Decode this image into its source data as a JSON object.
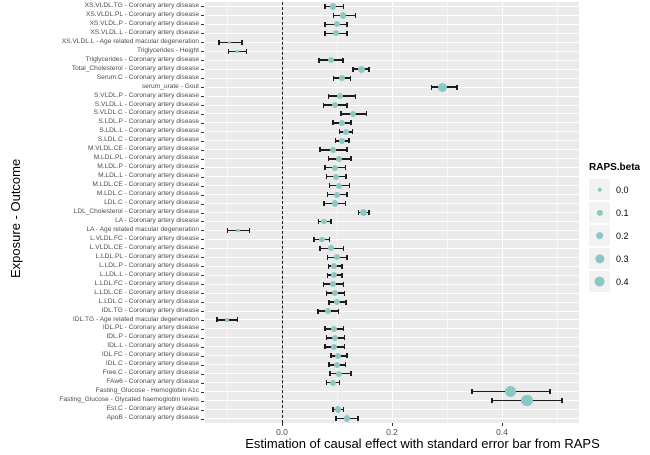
{
  "chart_data": {
    "type": "scatter",
    "subtype": "forest-dot-plot-with-error-bars",
    "title": "",
    "xlabel": "Estimation of causal effect with standard error bar from RAPS",
    "ylabel": "Exposure - Outcome",
    "xlim": [
      -0.14,
      0.54
    ],
    "x_ticks": [
      0.0,
      0.2,
      0.4
    ],
    "x_tick_labels": [
      "0.0",
      "0.2",
      "0.4"
    ],
    "x_minor_gridlines": [
      -0.1,
      0.1,
      0.3,
      0.5
    ],
    "zero_reference_line": {
      "x": 0.0,
      "style": "dashed",
      "color": "#1a1a1a"
    },
    "grid": true,
    "panel_background": "#EBEBEB",
    "point_color": "#8BC8C3",
    "errorbar_color": "#1c1c1c",
    "size_legend": {
      "title": "RAPS.beta",
      "position": "right",
      "entries": [
        {
          "label": "0.0",
          "value": 0.0
        },
        {
          "label": "0.1",
          "value": 0.1
        },
        {
          "label": "0.2",
          "value": 0.2
        },
        {
          "label": "0.3",
          "value": 0.3
        },
        {
          "label": "0.4",
          "value": 0.4
        }
      ]
    },
    "rows": [
      {
        "label": "XS.VLDL.TG - Coronary artery disease",
        "estimate": 0.093,
        "lower": 0.078,
        "upper": 0.111
      },
      {
        "label": "XS.VLDL.PL - Coronary artery disease",
        "estimate": 0.111,
        "lower": 0.093,
        "upper": 0.133
      },
      {
        "label": "XS.VLDL.P - Coronary artery disease",
        "estimate": 0.1,
        "lower": 0.078,
        "upper": 0.118
      },
      {
        "label": "XS.VLDL.L - Coronary artery disease",
        "estimate": 0.098,
        "lower": 0.078,
        "upper": 0.118
      },
      {
        "label": "XS.VLDL.L - Age related macular degeneration",
        "estimate": -0.095,
        "lower": -0.115,
        "upper": -0.073
      },
      {
        "label": "Triglycerides - Height",
        "estimate": -0.082,
        "lower": -0.098,
        "upper": -0.065
      },
      {
        "label": "Triglycerides - Coronary artery disease",
        "estimate": 0.09,
        "lower": 0.067,
        "upper": 0.11
      },
      {
        "label": "Total_Cholesterol - Coronary artery disease",
        "estimate": 0.144,
        "lower": 0.129,
        "upper": 0.158
      },
      {
        "label": "Serum.C - Coronary artery disease",
        "estimate": 0.109,
        "lower": 0.093,
        "upper": 0.124
      },
      {
        "label": "serum_urate - Gout",
        "estimate": 0.292,
        "lower": 0.271,
        "upper": 0.318
      },
      {
        "label": "S.VLDL.P - Coronary artery disease",
        "estimate": 0.105,
        "lower": 0.084,
        "upper": 0.133
      },
      {
        "label": "S.VLDL.L - Coronary artery disease",
        "estimate": 0.096,
        "lower": 0.075,
        "upper": 0.118
      },
      {
        "label": "S.VLDL.C - Coronary artery disease",
        "estimate": 0.129,
        "lower": 0.107,
        "upper": 0.153
      },
      {
        "label": "S.LDL.P - Coronary artery disease",
        "estimate": 0.109,
        "lower": 0.092,
        "upper": 0.125
      },
      {
        "label": "S.LDL.L - Coronary artery disease",
        "estimate": 0.116,
        "lower": 0.104,
        "upper": 0.128
      },
      {
        "label": "S.LDL.C - Coronary artery disease",
        "estimate": 0.109,
        "lower": 0.097,
        "upper": 0.121
      },
      {
        "label": "M.VLDL.CE - Coronary artery disease",
        "estimate": 0.093,
        "lower": 0.069,
        "upper": 0.118
      },
      {
        "label": "M.LDL.PL - Coronary artery disease",
        "estimate": 0.104,
        "lower": 0.084,
        "upper": 0.125
      },
      {
        "label": "M.LDL.P - Coronary artery disease",
        "estimate": 0.096,
        "lower": 0.078,
        "upper": 0.115
      },
      {
        "label": "M.LDL.L - Coronary artery disease",
        "estimate": 0.098,
        "lower": 0.08,
        "upper": 0.116
      },
      {
        "label": "M.LDL.CE - Coronary artery disease",
        "estimate": 0.104,
        "lower": 0.086,
        "upper": 0.122
      },
      {
        "label": "M.LDL.C - Coronary artery disease",
        "estimate": 0.1,
        "lower": 0.082,
        "upper": 0.118
      },
      {
        "label": "LDL.C - Coronary artery disease",
        "estimate": 0.096,
        "lower": 0.076,
        "upper": 0.115
      },
      {
        "label": "LDL_Cholesterol - Coronary artery disease",
        "estimate": 0.149,
        "lower": 0.139,
        "upper": 0.158
      },
      {
        "label": "LA - Coronary artery disease",
        "estimate": 0.076,
        "lower": 0.066,
        "upper": 0.089
      },
      {
        "label": "LA - Age related macular degeneration",
        "estimate": -0.08,
        "lower": -0.1,
        "upper": -0.06
      },
      {
        "label": "L.VLDL.FC - Coronary artery disease",
        "estimate": 0.073,
        "lower": 0.058,
        "upper": 0.086
      },
      {
        "label": "L.VLDL.CE - Coronary artery disease",
        "estimate": 0.09,
        "lower": 0.069,
        "upper": 0.111
      },
      {
        "label": "L.LDL.PL - Coronary artery disease",
        "estimate": 0.1,
        "lower": 0.082,
        "upper": 0.118
      },
      {
        "label": "L.LDL.P - Coronary artery disease",
        "estimate": 0.095,
        "lower": 0.084,
        "upper": 0.109
      },
      {
        "label": "L.LDL.L - Coronary artery disease",
        "estimate": 0.095,
        "lower": 0.082,
        "upper": 0.109
      },
      {
        "label": "L.LDL.FC - Coronary artery disease",
        "estimate": 0.093,
        "lower": 0.075,
        "upper": 0.111
      },
      {
        "label": "L.LDL.CE - Coronary artery disease",
        "estimate": 0.096,
        "lower": 0.08,
        "upper": 0.113
      },
      {
        "label": "L.LDL.C - Coronary artery disease",
        "estimate": 0.1,
        "lower": 0.085,
        "upper": 0.116
      },
      {
        "label": "IDL.TG - Coronary artery disease",
        "estimate": 0.084,
        "lower": 0.065,
        "upper": 0.102
      },
      {
        "label": "IDL.TG - Age related macular degeneration",
        "estimate": -0.1,
        "lower": -0.119,
        "upper": -0.081
      },
      {
        "label": "IDL.PL - Coronary artery disease",
        "estimate": 0.095,
        "lower": 0.078,
        "upper": 0.111
      },
      {
        "label": "IDL.P - Coronary artery disease",
        "estimate": 0.096,
        "lower": 0.08,
        "upper": 0.113
      },
      {
        "label": "IDL.L - Coronary artery disease",
        "estimate": 0.095,
        "lower": 0.078,
        "upper": 0.113
      },
      {
        "label": "IDL.FC - Coronary artery disease",
        "estimate": 0.102,
        "lower": 0.089,
        "upper": 0.118
      },
      {
        "label": "IDL.C - Coronary artery disease",
        "estimate": 0.1,
        "lower": 0.085,
        "upper": 0.115
      },
      {
        "label": "Free.C - Coronary artery disease",
        "estimate": 0.104,
        "lower": 0.087,
        "upper": 0.125
      },
      {
        "label": "FAw6 - Coronary artery disease",
        "estimate": 0.092,
        "lower": 0.08,
        "upper": 0.104
      },
      {
        "label": "Fasting_Glucose - Hemoglobin A1c",
        "estimate": 0.415,
        "lower": 0.345,
        "upper": 0.487
      },
      {
        "label": "Fasting_Glucose - Glycated haemoglobin levels",
        "estimate": 0.445,
        "lower": 0.381,
        "upper": 0.509
      },
      {
        "label": "Est.C - Coronary artery disease",
        "estimate": 0.102,
        "lower": 0.092,
        "upper": 0.111
      },
      {
        "label": "ApoB - Coronary artery disease",
        "estimate": 0.118,
        "lower": 0.098,
        "upper": 0.138
      }
    ]
  }
}
